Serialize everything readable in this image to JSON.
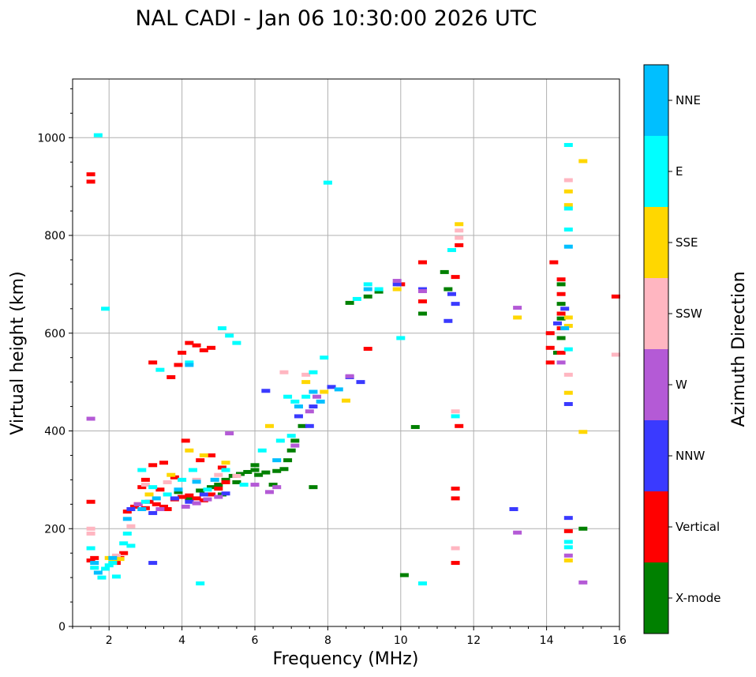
{
  "chart_data": {
    "type": "scatter",
    "title": "NAL CADI - Jan 06 10:30:00 2026 UTC",
    "xlabel": "Frequency (MHz)",
    "ylabel": "Virtual height (km)",
    "xlim": [
      1,
      16
    ],
    "ylim": [
      0,
      1120
    ],
    "xticks": [
      2,
      4,
      6,
      8,
      10,
      12,
      14,
      16
    ],
    "xtick_labels": [
      "2",
      "4",
      "6",
      "8",
      "10",
      "12",
      "14",
      "16"
    ],
    "yticks": [
      0,
      200,
      400,
      600,
      800,
      1000
    ],
    "ytick_labels": [
      "0",
      "200",
      "400",
      "600",
      "800",
      "1000"
    ],
    "grid": true,
    "colorbar": {
      "label": "Azimuth Direction",
      "categories": [
        {
          "name": "X-mode",
          "color": "#008000"
        },
        {
          "name": "Vertical",
          "color": "#ff0000"
        },
        {
          "name": "NNW",
          "color": "#3a3aff"
        },
        {
          "name": "W",
          "color": "#b45ad6"
        },
        {
          "name": "SSW",
          "color": "#ffb6c1"
        },
        {
          "name": "SSE",
          "color": "#ffd700"
        },
        {
          "name": "E",
          "color": "#00ffff"
        },
        {
          "name": "NNE",
          "color": "#00bfff"
        }
      ]
    },
    "series": [
      {
        "name": "X-mode",
        "points": [
          [
            3.9,
            275
          ],
          [
            4.2,
            262
          ],
          [
            4.5,
            278
          ],
          [
            4.8,
            285
          ],
          [
            5.0,
            290
          ],
          [
            5.2,
            300
          ],
          [
            5.4,
            308
          ],
          [
            5.6,
            312
          ],
          [
            5.8,
            316
          ],
          [
            6.0,
            320
          ],
          [
            6.3,
            315
          ],
          [
            6.6,
            318
          ],
          [
            6.8,
            322
          ],
          [
            6.9,
            340
          ],
          [
            7.0,
            360
          ],
          [
            7.1,
            380
          ],
          [
            7.3,
            410
          ],
          [
            5.1,
            270
          ],
          [
            5.5,
            295
          ],
          [
            6.1,
            310
          ],
          [
            8.6,
            662
          ],
          [
            9.1,
            675
          ],
          [
            9.4,
            685
          ],
          [
            10.4,
            408
          ],
          [
            10.1,
            105
          ],
          [
            10.6,
            640
          ],
          [
            11.2,
            725
          ],
          [
            11.3,
            690
          ],
          [
            14.4,
            700
          ],
          [
            14.4,
            660
          ],
          [
            14.4,
            630
          ],
          [
            14.4,
            590
          ],
          [
            14.3,
            560
          ],
          [
            15.0,
            200
          ],
          [
            7.6,
            285
          ],
          [
            6.5,
            290
          ],
          [
            6.0,
            330
          ]
        ]
      },
      {
        "name": "Vertical",
        "points": [
          [
            1.5,
            925
          ],
          [
            1.5,
            910
          ],
          [
            1.5,
            255
          ],
          [
            1.5,
            135
          ],
          [
            1.6,
            140
          ],
          [
            2.2,
            130
          ],
          [
            2.3,
            140
          ],
          [
            2.4,
            150
          ],
          [
            2.5,
            235
          ],
          [
            2.7,
            245
          ],
          [
            2.8,
            250
          ],
          [
            3.0,
            242
          ],
          [
            3.1,
            255
          ],
          [
            3.3,
            250
          ],
          [
            3.5,
            245
          ],
          [
            3.6,
            240
          ],
          [
            3.8,
            260
          ],
          [
            4.0,
            265
          ],
          [
            4.2,
            268
          ],
          [
            4.4,
            262
          ],
          [
            4.6,
            258
          ],
          [
            4.8,
            270
          ],
          [
            5.0,
            282
          ],
          [
            5.2,
            295
          ],
          [
            3.0,
            300
          ],
          [
            3.2,
            330
          ],
          [
            3.5,
            335
          ],
          [
            3.8,
            305
          ],
          [
            4.1,
            380
          ],
          [
            4.5,
            340
          ],
          [
            4.8,
            350
          ],
          [
            5.1,
            325
          ],
          [
            2.9,
            285
          ],
          [
            3.4,
            280
          ],
          [
            3.2,
            540
          ],
          [
            3.7,
            510
          ],
          [
            4.0,
            560
          ],
          [
            4.2,
            580
          ],
          [
            4.4,
            575
          ],
          [
            4.6,
            565
          ],
          [
            4.8,
            570
          ],
          [
            3.9,
            535
          ],
          [
            9.1,
            568
          ],
          [
            10.0,
            700
          ],
          [
            10.6,
            745
          ],
          [
            10.6,
            665
          ],
          [
            11.5,
            715
          ],
          [
            11.5,
            282
          ],
          [
            11.5,
            262
          ],
          [
            11.5,
            130
          ],
          [
            11.6,
            780
          ],
          [
            11.6,
            410
          ],
          [
            14.2,
            745
          ],
          [
            14.1,
            600
          ],
          [
            14.1,
            570
          ],
          [
            14.1,
            540
          ],
          [
            14.4,
            710
          ],
          [
            14.4,
            680
          ],
          [
            14.4,
            640
          ],
          [
            14.4,
            610
          ],
          [
            14.4,
            560
          ],
          [
            14.6,
            195
          ],
          [
            15.9,
            675
          ]
        ]
      },
      {
        "name": "NNW",
        "points": [
          [
            2.6,
            240
          ],
          [
            3.2,
            232
          ],
          [
            3.8,
            262
          ],
          [
            4.2,
            255
          ],
          [
            4.6,
            270
          ],
          [
            5.2,
            272
          ],
          [
            7.6,
            450
          ],
          [
            7.2,
            430
          ],
          [
            7.5,
            410
          ],
          [
            8.1,
            490
          ],
          [
            8.6,
            510
          ],
          [
            8.9,
            500
          ],
          [
            9.9,
            700
          ],
          [
            10.6,
            690
          ],
          [
            11.3,
            625
          ],
          [
            11.4,
            680
          ],
          [
            11.5,
            660
          ],
          [
            13.1,
            240
          ],
          [
            14.6,
            222
          ],
          [
            14.6,
            455
          ],
          [
            6.3,
            482
          ],
          [
            3.2,
            130
          ],
          [
            14.5,
            650
          ],
          [
            14.3,
            620
          ]
        ]
      },
      {
        "name": "W",
        "points": [
          [
            1.5,
            425
          ],
          [
            2.8,
            250
          ],
          [
            3.4,
            240
          ],
          [
            4.1,
            245
          ],
          [
            4.4,
            252
          ],
          [
            4.7,
            260
          ],
          [
            5.0,
            265
          ],
          [
            6.4,
            275
          ],
          [
            6.6,
            285
          ],
          [
            7.1,
            370
          ],
          [
            7.5,
            440
          ],
          [
            7.7,
            470
          ],
          [
            8.6,
            512
          ],
          [
            9.9,
            707
          ],
          [
            10.6,
            686
          ],
          [
            13.2,
            652
          ],
          [
            13.2,
            192
          ],
          [
            15.0,
            90
          ],
          [
            14.6,
            145
          ],
          [
            14.4,
            540
          ],
          [
            5.3,
            395
          ],
          [
            6.0,
            290
          ]
        ]
      },
      {
        "name": "SSW",
        "points": [
          [
            1.5,
            200
          ],
          [
            1.5,
            190
          ],
          [
            2.2,
            145
          ],
          [
            2.6,
            205
          ],
          [
            3.0,
            290
          ],
          [
            3.6,
            295
          ],
          [
            4.4,
            300
          ],
          [
            5.0,
            310
          ],
          [
            5.5,
            308
          ],
          [
            6.8,
            520
          ],
          [
            7.4,
            515
          ],
          [
            11.6,
            810
          ],
          [
            11.6,
            795
          ],
          [
            11.5,
            440
          ],
          [
            11.5,
            160
          ],
          [
            14.6,
            515
          ],
          [
            14.6,
            913
          ],
          [
            15.9,
            556
          ],
          [
            4.9,
            300
          ]
        ]
      },
      {
        "name": "SSE",
        "points": [
          [
            2.0,
            140
          ],
          [
            2.1,
            132
          ],
          [
            2.3,
            138
          ],
          [
            3.1,
            270
          ],
          [
            3.7,
            310
          ],
          [
            4.2,
            360
          ],
          [
            4.6,
            350
          ],
          [
            5.2,
            335
          ],
          [
            6.4,
            410
          ],
          [
            7.4,
            500
          ],
          [
            7.9,
            480
          ],
          [
            8.5,
            462
          ],
          [
            9.9,
            690
          ],
          [
            11.6,
            823
          ],
          [
            13.2,
            632
          ],
          [
            14.6,
            890
          ],
          [
            14.6,
            862
          ],
          [
            14.6,
            632
          ],
          [
            14.6,
            615
          ],
          [
            14.6,
            478
          ],
          [
            15.0,
            952
          ],
          [
            15.0,
            398
          ],
          [
            14.6,
            135
          ]
        ]
      },
      {
        "name": "E",
        "points": [
          [
            1.5,
            160
          ],
          [
            1.6,
            120
          ],
          [
            1.8,
            100
          ],
          [
            1.9,
            118
          ],
          [
            2.0,
            125
          ],
          [
            2.1,
            130
          ],
          [
            2.2,
            102
          ],
          [
            2.4,
            170
          ],
          [
            2.5,
            190
          ],
          [
            2.6,
            165
          ],
          [
            3.0,
            255
          ],
          [
            3.2,
            285
          ],
          [
            3.6,
            270
          ],
          [
            4.0,
            300
          ],
          [
            4.3,
            320
          ],
          [
            4.7,
            280
          ],
          [
            5.2,
            320
          ],
          [
            5.7,
            290
          ],
          [
            6.2,
            360
          ],
          [
            6.7,
            380
          ],
          [
            7.0,
            390
          ],
          [
            7.1,
            460
          ],
          [
            7.4,
            470
          ],
          [
            7.6,
            520
          ],
          [
            7.9,
            550
          ],
          [
            3.4,
            525
          ],
          [
            4.2,
            540
          ],
          [
            4.5,
            88
          ],
          [
            5.1,
            610
          ],
          [
            5.3,
            595
          ],
          [
            5.5,
            580
          ],
          [
            8.8,
            670
          ],
          [
            9.1,
            700
          ],
          [
            9.4,
            690
          ],
          [
            10.0,
            590
          ],
          [
            10.6,
            88
          ],
          [
            11.4,
            770
          ],
          [
            11.5,
            430
          ],
          [
            1.7,
            1005
          ],
          [
            1.9,
            650
          ],
          [
            8.0,
            908
          ],
          [
            14.6,
            985
          ],
          [
            14.6,
            812
          ],
          [
            14.6,
            855
          ],
          [
            14.6,
            567
          ],
          [
            14.6,
            173
          ],
          [
            14.6,
            162
          ],
          [
            2.9,
            320
          ],
          [
            6.9,
            470
          ]
        ]
      },
      {
        "name": "NNE",
        "points": [
          [
            1.6,
            130
          ],
          [
            1.7,
            110
          ],
          [
            2.1,
            140
          ],
          [
            2.5,
            220
          ],
          [
            2.9,
            240
          ],
          [
            3.3,
            262
          ],
          [
            3.9,
            280
          ],
          [
            4.2,
            535
          ],
          [
            4.4,
            296
          ],
          [
            4.9,
            300
          ],
          [
            6.6,
            340
          ],
          [
            7.2,
            450
          ],
          [
            7.6,
            480
          ],
          [
            7.8,
            460
          ],
          [
            8.3,
            485
          ],
          [
            9.1,
            690
          ],
          [
            14.6,
            777
          ],
          [
            14.5,
            610
          ]
        ]
      }
    ]
  }
}
